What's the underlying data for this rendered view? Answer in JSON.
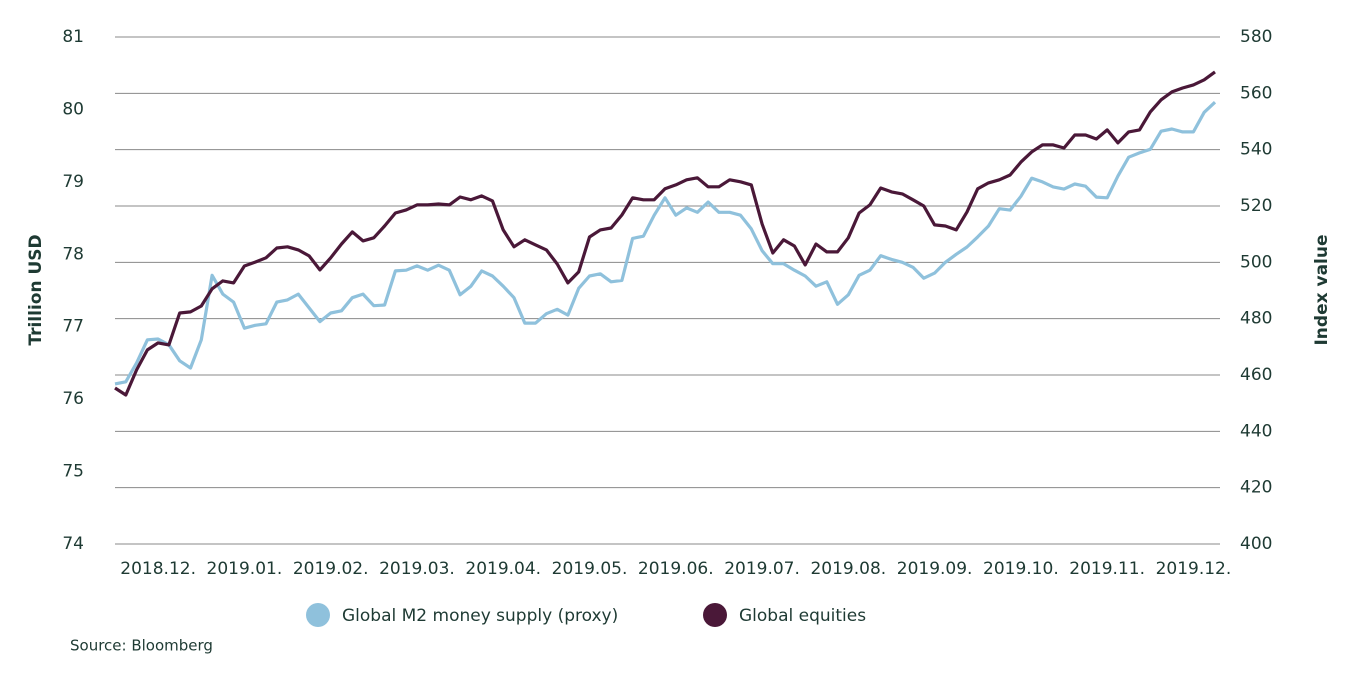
{
  "chart_data": {
    "type": "line",
    "y_label": "Trillion USD",
    "y2_label": "Index value",
    "source": "Source: Bloomberg",
    "categories": [
      null,
      null,
      null,
      null,
      "2018.12.",
      null,
      null,
      null,
      null,
      null,
      null,
      null,
      "2019.01.",
      null,
      null,
      null,
      null,
      null,
      null,
      null,
      "2019.02.",
      null,
      null,
      null,
      null,
      null,
      null,
      null,
      "2019.03.",
      null,
      null,
      null,
      null,
      null,
      null,
      null,
      "2019.04.",
      null,
      null,
      null,
      null,
      null,
      null,
      null,
      "2019.05.",
      null,
      null,
      null,
      null,
      null,
      null,
      null,
      "2019.06.",
      null,
      null,
      null,
      null,
      null,
      null,
      null,
      "2019.07.",
      null,
      null,
      null,
      null,
      null,
      null,
      null,
      "2019.08.",
      null,
      null,
      null,
      null,
      null,
      null,
      null,
      "2019.09.",
      null,
      null,
      null,
      null,
      null,
      null,
      null,
      "2019.10.",
      null,
      null,
      null,
      null,
      null,
      null,
      null,
      "2019.11.",
      null,
      null,
      null,
      null,
      null,
      null,
      null,
      "2019.12.",
      null,
      null
    ],
    "series": [
      {
        "name": "Global M2 money supply (proxy)",
        "color": "#8fc1dc",
        "axis": "y",
        "values": [
          76.21,
          76.24,
          76.5,
          76.82,
          76.83,
          76.75,
          76.53,
          76.43,
          76.82,
          77.71,
          77.45,
          77.34,
          76.98,
          77.02,
          77.04,
          77.34,
          77.37,
          77.45,
          77.26,
          77.07,
          77.19,
          77.22,
          77.4,
          77.45,
          77.29,
          77.3,
          77.77,
          77.78,
          77.84,
          77.78,
          77.85,
          77.78,
          77.44,
          77.56,
          77.77,
          77.7,
          77.56,
          77.4,
          77.05,
          77.05,
          77.18,
          77.24,
          77.16,
          77.53,
          77.7,
          77.73,
          77.62,
          77.64,
          78.22,
          78.25,
          78.54,
          78.78,
          78.54,
          78.64,
          78.58,
          78.72,
          78.58,
          78.58,
          78.54,
          78.35,
          78.05,
          77.87,
          77.87,
          77.78,
          77.7,
          77.56,
          77.62,
          77.31,
          77.44,
          77.71,
          77.78,
          77.98,
          77.93,
          77.89,
          77.82,
          77.67,
          77.74,
          77.89,
          78.0,
          78.1,
          78.24,
          78.39,
          78.63,
          78.61,
          78.8,
          79.05,
          79.0,
          78.93,
          78.9,
          78.97,
          78.94,
          78.79,
          78.78,
          79.08,
          79.34,
          79.4,
          79.45,
          79.7,
          79.73,
          79.69,
          79.69,
          79.96,
          80.1
        ]
      },
      {
        "name": "Global equities",
        "color": "#4a1838",
        "axis": "y2",
        "values": [
          455.4,
          452.9,
          461.8,
          468.9,
          471.4,
          470.7,
          482.0,
          482.4,
          484.5,
          490.6,
          493.4,
          492.7,
          498.7,
          500.1,
          501.6,
          505.1,
          505.5,
          504.4,
          502.3,
          497.3,
          501.6,
          506.5,
          510.8,
          507.6,
          508.7,
          512.9,
          517.5,
          518.6,
          520.4,
          520.4,
          520.7,
          520.4,
          523.2,
          522.2,
          523.6,
          521.8,
          511.5,
          505.5,
          508.0,
          506.2,
          504.4,
          499.4,
          492.7,
          496.6,
          509.0,
          511.5,
          512.2,
          516.8,
          522.9,
          522.2,
          522.2,
          526.1,
          527.5,
          529.3,
          530.0,
          526.8,
          526.8,
          529.3,
          528.6,
          527.5,
          513.6,
          503.3,
          508.0,
          505.8,
          499.1,
          506.5,
          503.7,
          503.7,
          508.7,
          517.5,
          520.4,
          526.4,
          525.0,
          524.3,
          522.2,
          520.0,
          513.3,
          512.9,
          511.5,
          517.9,
          526.1,
          528.2,
          529.3,
          531.0,
          535.6,
          539.2,
          541.7,
          541.7,
          540.6,
          545.2,
          545.2,
          543.8,
          547.0,
          542.4,
          546.3,
          547.0,
          553.4,
          557.7,
          560.5,
          561.9,
          563.0,
          564.8,
          567.6
        ]
      }
    ],
    "ylim": [
      74,
      81
    ],
    "yticks": [
      74,
      75,
      76,
      77,
      78,
      79,
      80,
      81
    ],
    "y2lim": [
      400,
      580
    ],
    "y2ticks": [
      400,
      420,
      440,
      460,
      480,
      500,
      520,
      540,
      560,
      580
    ],
    "grid": true,
    "legend": "bottom"
  }
}
